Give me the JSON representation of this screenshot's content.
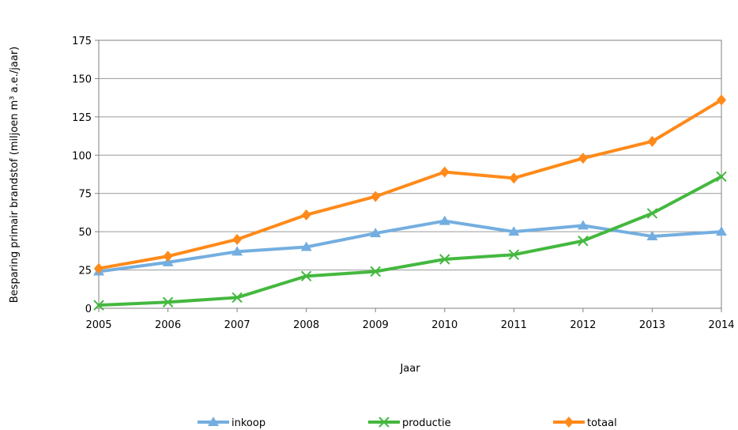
{
  "chart_data": {
    "type": "line",
    "xlabel": "Jaar",
    "ylabel": "Besparing primair brandstof (miljoen m³ a.e./jaar)",
    "x": [
      "2005",
      "2006",
      "2007",
      "2008",
      "2009",
      "2010",
      "2011",
      "2012",
      "2013",
      "2014"
    ],
    "yticks": [
      "0",
      "25",
      "50",
      "75",
      "100",
      "125",
      "150",
      "175"
    ],
    "ylim": [
      0,
      175
    ],
    "grid": "horizontal",
    "legend_position": "bottom",
    "series": [
      {
        "name": "inkoop",
        "color": "#74aee0",
        "marker": "triangle",
        "values": [
          24,
          30,
          37,
          40,
          49,
          57,
          50,
          54,
          47,
          50
        ]
      },
      {
        "name": "productie",
        "color": "#44b83f",
        "marker": "x",
        "values": [
          2,
          4,
          7,
          21,
          24,
          32,
          35,
          44,
          62,
          86
        ]
      },
      {
        "name": "totaal",
        "color": "#ff8a1a",
        "marker": "diamond",
        "values": [
          26,
          34,
          45,
          61,
          73,
          89,
          85,
          98,
          109,
          136
        ]
      }
    ]
  }
}
